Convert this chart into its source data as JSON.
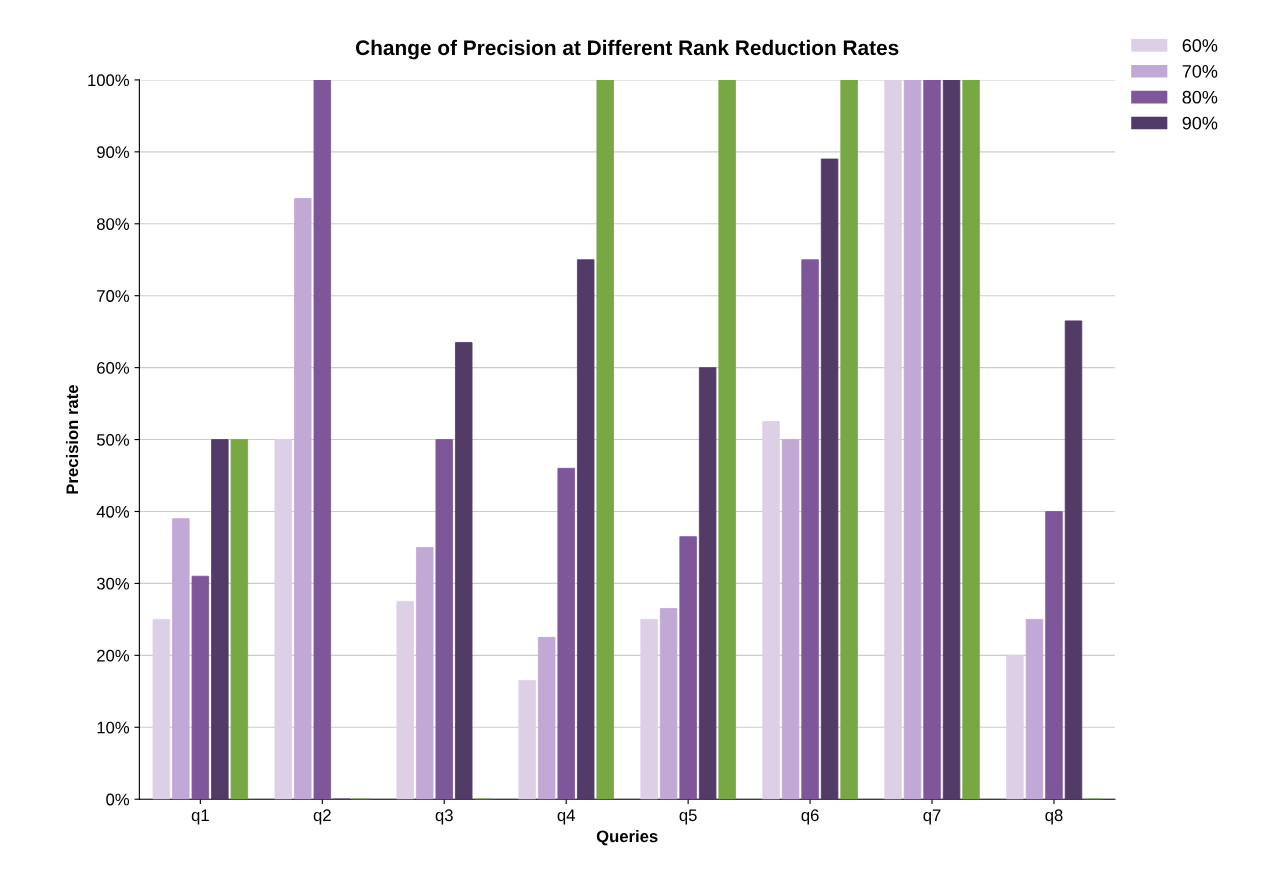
{
  "chart_data": {
    "type": "bar",
    "title": "Change of Precision at Different Rank Reduction Rates",
    "xlabel": "Queries",
    "ylabel": "Precision rate",
    "categories": [
      "q1",
      "q2",
      "q3",
      "q4",
      "q5",
      "q6",
      "q7",
      "q8"
    ],
    "series": [
      {
        "name": "60%",
        "color": "#ddd0e6",
        "values": [
          25,
          50,
          27.5,
          16.5,
          25,
          52.5,
          100,
          20
        ]
      },
      {
        "name": "70%",
        "color": "#c2a8d5",
        "values": [
          39,
          83.5,
          35,
          22.5,
          26.5,
          50,
          100,
          25
        ]
      },
      {
        "name": "80%",
        "color": "#7e579b",
        "values": [
          31,
          100,
          50,
          46,
          36.5,
          75,
          100,
          40
        ]
      },
      {
        "name": "90%",
        "color": "#533b67",
        "values": [
          50,
          0,
          63.5,
          75,
          60,
          89,
          100,
          66.5
        ]
      },
      {
        "color": "#78a843",
        "values": [
          50,
          0,
          0,
          100,
          100,
          100,
          100,
          0
        ]
      }
    ],
    "ylim": [
      0,
      100
    ],
    "yticks": [
      {
        "value": 0,
        "label": "0%"
      },
      {
        "value": 10,
        "label": "10%"
      },
      {
        "value": 20,
        "label": "20%"
      },
      {
        "value": 30,
        "label": "30%"
      },
      {
        "value": 40,
        "label": "40%"
      },
      {
        "value": 50,
        "label": "50%"
      },
      {
        "value": 60,
        "label": "60%"
      },
      {
        "value": 70,
        "label": "70%"
      },
      {
        "value": 80,
        "label": "80%"
      },
      {
        "value": 90,
        "label": "90%"
      },
      {
        "value": 100,
        "label": "100%"
      }
    ],
    "grid": "y",
    "legend": "top right"
  }
}
